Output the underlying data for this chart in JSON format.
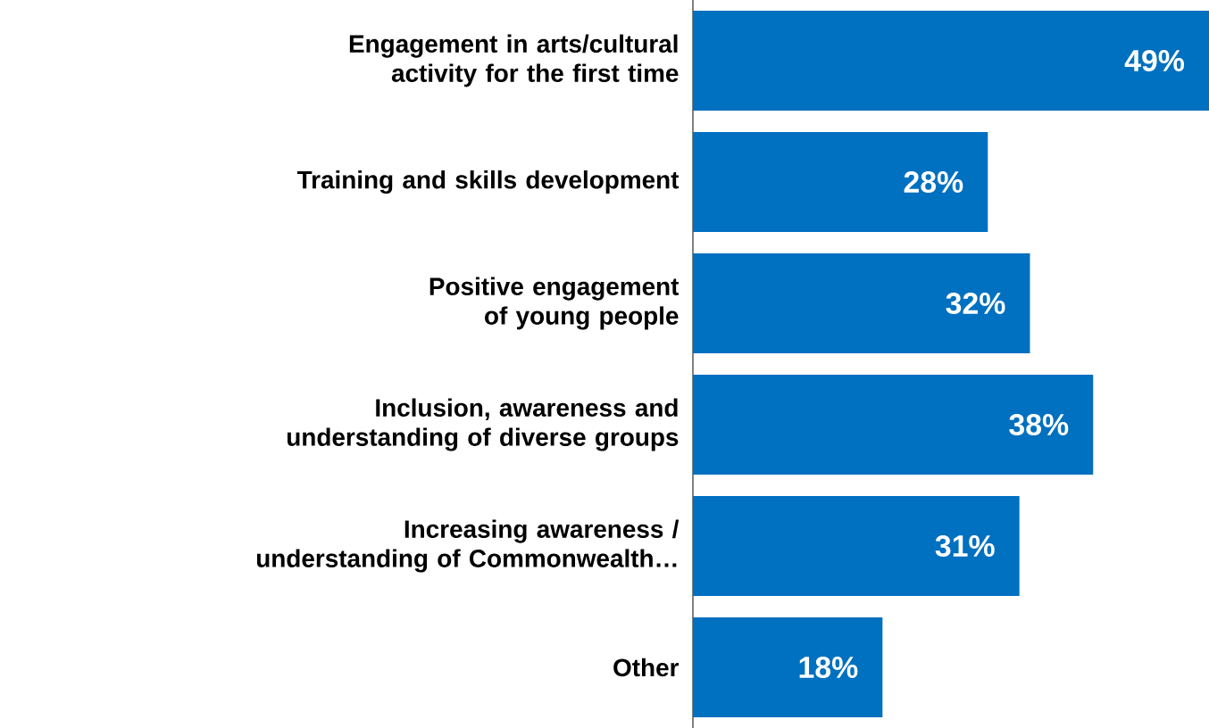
{
  "chart_data": {
    "type": "bar",
    "orientation": "horizontal",
    "categories": [
      "Engagement in arts/cultural activity for the first time",
      "Training and skills development",
      "Positive engagement of young people",
      "Inclusion, awareness and understanding of diverse groups",
      "Increasing awareness / understanding of Commonwealth…",
      "Other"
    ],
    "values": [
      49,
      28,
      32,
      38,
      31,
      18
    ],
    "value_labels": [
      "49%",
      "28%",
      "32%",
      "38%",
      "31%",
      "18%"
    ],
    "xlim": [
      0,
      49
    ],
    "color": "#0070c0"
  }
}
